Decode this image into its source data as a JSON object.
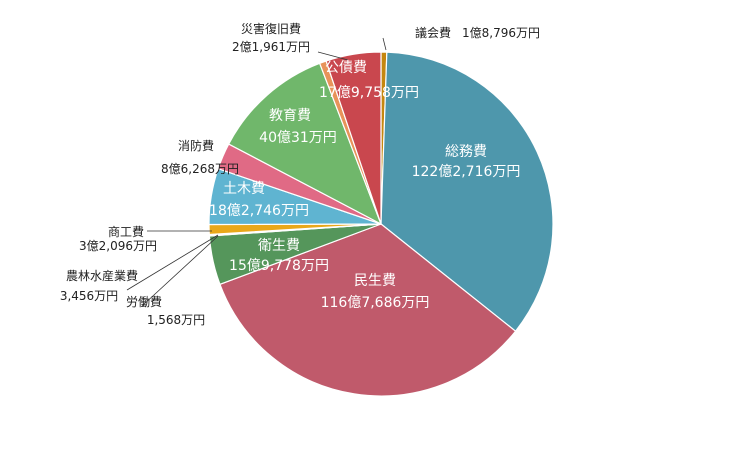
{
  "chart_data": {
    "type": "pie",
    "unit": "万円",
    "slices": [
      {
        "name": "議会費",
        "value": 18796,
        "label": "1億8,796万円",
        "color": "#C5870F",
        "label_pos": "outside"
      },
      {
        "name": "総務費",
        "value": 1222716,
        "label": "122億2,716万円",
        "color": "#4E97AC",
        "label_pos": "inside"
      },
      {
        "name": "民生費",
        "value": 1167686,
        "label": "116億7,686万円",
        "color": "#C05A6B",
        "label_pos": "inside"
      },
      {
        "name": "衛生費",
        "value": 159778,
        "label": "15億9,778万円",
        "color": "#55965B",
        "label_pos": "inside"
      },
      {
        "name": "労働費",
        "value": 1568,
        "label": "1,568万円",
        "color": "#8E8E8E",
        "label_pos": "outside"
      },
      {
        "name": "農林水産業費",
        "value": 3456,
        "label": "3,456万円",
        "color": "#9B6FAE",
        "label_pos": "outside"
      },
      {
        "name": "商工費",
        "value": 32096,
        "label": "3億2,096万円",
        "color": "#E9A81A",
        "label_pos": "outside"
      },
      {
        "name": "土木費",
        "value": 182746,
        "label": "18億2,746万円",
        "color": "#5FB4D1",
        "label_pos": "inside"
      },
      {
        "name": "消防費",
        "value": 86268,
        "label": "8億6,268万円",
        "color": "#E06A85",
        "label_pos": "outside"
      },
      {
        "name": "教育費",
        "value": 400031,
        "label": "40億31万円",
        "color": "#70B76B",
        "label_pos": "inside"
      },
      {
        "name": "災害復旧費",
        "value": 21961,
        "label": "2億1,961万円",
        "color": "#E8935A",
        "label_pos": "outside"
      },
      {
        "name": "公債費",
        "value": 179758,
        "label": "17億9,758万円",
        "color": "#C9474E",
        "label_pos": "inside"
      }
    ]
  }
}
